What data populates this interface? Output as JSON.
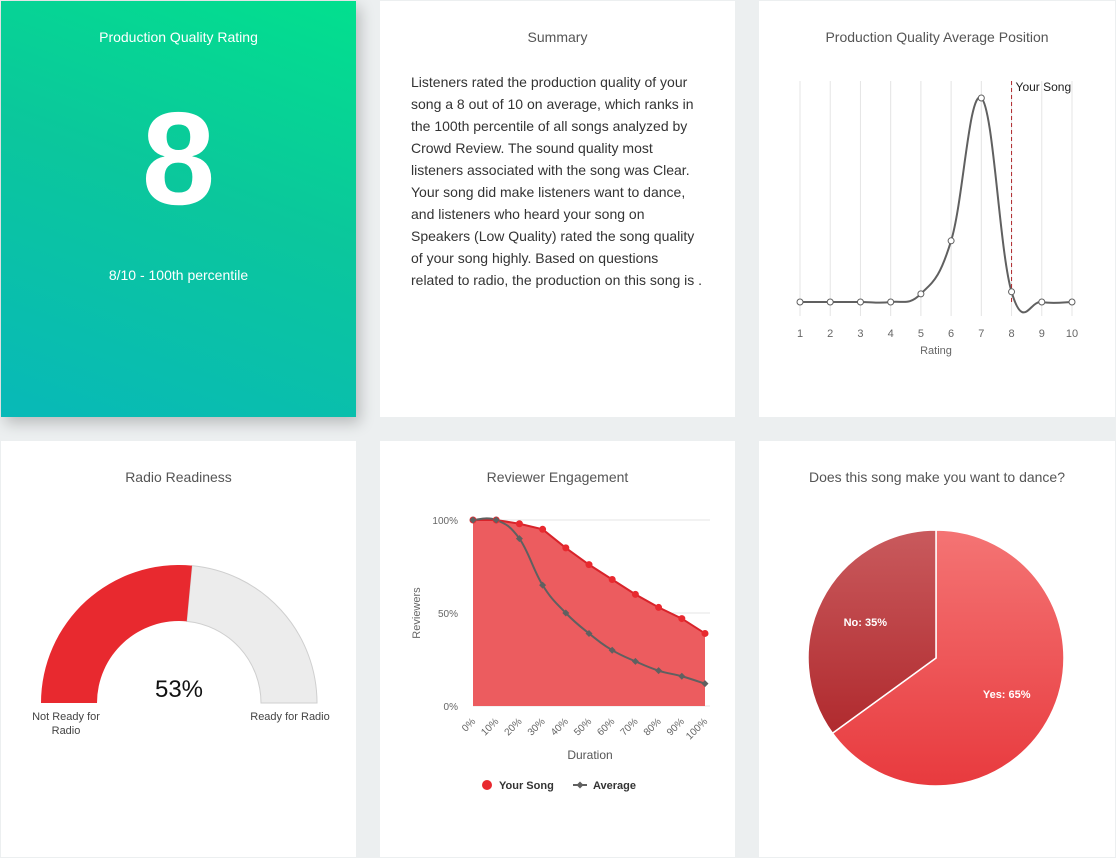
{
  "rating_card": {
    "title": "Production Quality Rating",
    "value": "8",
    "subtitle": "8/10 - 100th percentile"
  },
  "summary_card": {
    "title": "Summary",
    "text": "Listeners rated the production quality of your song a 8 out of 10 on average, which ranks in the 100th percentile of all songs analyzed by Crowd Review. The sound quality most listeners associated with the song was Clear. Your song did make listeners want to dance, and listeners who heard your song on Speakers (Low Quality) rated the song quality of your song highly. Based on questions related to radio, the production on this song is ."
  },
  "colors": {
    "red": "#e8292f",
    "red_fill": "#ec5c5f",
    "grey_line": "#606060",
    "gauge_empty": "#ececec"
  },
  "chart_data": [
    {
      "type": "line",
      "title": "Production Quality Average Position",
      "xlabel": "Rating",
      "ylabel": "",
      "x": [
        1,
        2,
        3,
        4,
        5,
        6,
        7,
        8,
        9,
        10
      ],
      "values": [
        0,
        0,
        0,
        0,
        0.04,
        0.3,
        1.0,
        0.05,
        0,
        0
      ],
      "ylim": [
        0,
        1
      ],
      "marker": {
        "x": 8,
        "label": "Your Song"
      },
      "grid": true
    },
    {
      "type": "gauge",
      "title": "Radio Readiness",
      "value": 53,
      "value_label": "53%",
      "min_label": "Not Ready for Radio",
      "max_label": "Ready for Radio"
    },
    {
      "type": "area",
      "title": "Reviewer Engagement",
      "xlabel": "Duration",
      "ylabel": "Reviewers",
      "categories": [
        "0%",
        "10%",
        "20%",
        "30%",
        "40%",
        "50%",
        "60%",
        "70%",
        "80%",
        "90%",
        "100%"
      ],
      "y_ticks": [
        "0%",
        "50%",
        "100%"
      ],
      "ylim": [
        0,
        100
      ],
      "series": [
        {
          "name": "Your Song",
          "values": [
            100,
            100,
            98,
            95,
            85,
            76,
            68,
            60,
            53,
            47,
            39
          ]
        },
        {
          "name": "Average",
          "values": [
            100,
            100,
            90,
            65,
            50,
            39,
            30,
            24,
            19,
            16,
            12
          ]
        }
      ],
      "legend": "bottom"
    },
    {
      "type": "pie",
      "title": "Does this song make you want to dance?",
      "slices": [
        {
          "label": "Yes",
          "value": 65,
          "text": "Yes: 65%"
        },
        {
          "label": "No",
          "value": 35,
          "text": "No: 35%"
        }
      ]
    }
  ]
}
